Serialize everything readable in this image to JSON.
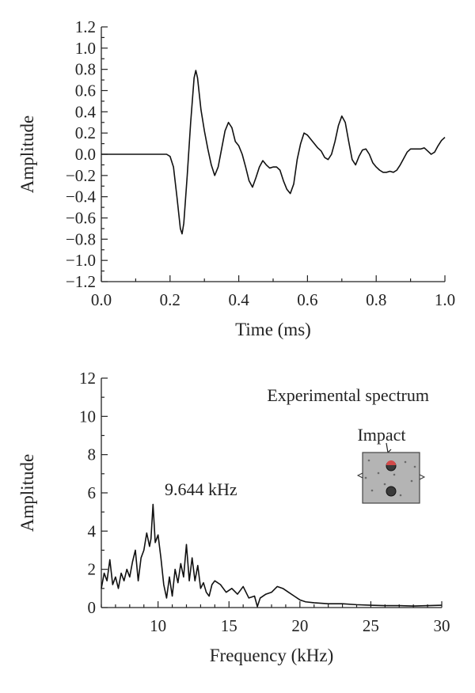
{
  "chart_data": [
    {
      "type": "line",
      "title": "",
      "xlabel": "Time (ms)",
      "ylabel": "Amplitude",
      "xlim": [
        0.0,
        1.0
      ],
      "ylim": [
        -1.2,
        1.2
      ],
      "xticks": [
        0.0,
        0.2,
        0.4,
        0.6,
        0.8,
        1.0
      ],
      "xtick_labels": [
        "0.0",
        "0.2",
        "0.4",
        "0.6",
        "0.8",
        "1.0"
      ],
      "yticks": [
        -1.2,
        -1.0,
        -0.8,
        -0.6,
        -0.4,
        -0.2,
        0.0,
        0.2,
        0.4,
        0.6,
        0.8,
        1.0,
        1.2
      ],
      "ytick_labels": [
        "−1.2",
        "−1.0",
        "−0.8",
        "−0.6",
        "−0.4",
        "−0.2",
        "0.0",
        "0.2",
        "0.4",
        "0.6",
        "0.8",
        "1.0",
        "1.2"
      ],
      "grid": false,
      "series": [
        {
          "x": [
            0.0,
            0.1,
            0.18,
            0.19,
            0.2,
            0.21,
            0.22,
            0.23,
            0.235,
            0.24,
            0.25,
            0.26,
            0.27,
            0.275,
            0.28,
            0.29,
            0.3,
            0.31,
            0.32,
            0.33,
            0.34,
            0.35,
            0.36,
            0.37,
            0.38,
            0.39,
            0.4,
            0.41,
            0.42,
            0.43,
            0.44,
            0.45,
            0.46,
            0.47,
            0.48,
            0.49,
            0.5,
            0.51,
            0.52,
            0.53,
            0.54,
            0.55,
            0.56,
            0.57,
            0.58,
            0.59,
            0.6,
            0.61,
            0.62,
            0.63,
            0.64,
            0.65,
            0.66,
            0.67,
            0.68,
            0.69,
            0.7,
            0.71,
            0.72,
            0.73,
            0.74,
            0.75,
            0.76,
            0.77,
            0.78,
            0.79,
            0.8,
            0.81,
            0.82,
            0.83,
            0.84,
            0.85,
            0.86,
            0.87,
            0.88,
            0.89,
            0.9,
            0.91,
            0.92,
            0.93,
            0.94,
            0.95,
            0.96,
            0.97,
            0.98,
            0.99,
            1.0
          ],
          "values": [
            0.0,
            0.0,
            0.0,
            0.0,
            -0.02,
            -0.12,
            -0.4,
            -0.7,
            -0.75,
            -0.65,
            -0.2,
            0.3,
            0.72,
            0.79,
            0.72,
            0.42,
            0.22,
            0.05,
            -0.1,
            -0.2,
            -0.12,
            0.05,
            0.22,
            0.3,
            0.25,
            0.12,
            0.08,
            0.0,
            -0.12,
            -0.25,
            -0.31,
            -0.22,
            -0.12,
            -0.06,
            -0.1,
            -0.13,
            -0.12,
            -0.12,
            -0.15,
            -0.25,
            -0.33,
            -0.37,
            -0.28,
            -0.05,
            0.1,
            0.2,
            0.18,
            0.14,
            0.1,
            0.06,
            0.03,
            -0.03,
            -0.05,
            0.0,
            0.12,
            0.27,
            0.36,
            0.3,
            0.12,
            -0.05,
            -0.1,
            -0.02,
            0.04,
            0.05,
            0.0,
            -0.08,
            -0.12,
            -0.15,
            -0.17,
            -0.17,
            -0.16,
            -0.17,
            -0.15,
            -0.1,
            -0.04,
            0.02,
            0.05,
            0.05,
            0.05,
            0.05,
            0.06,
            0.03,
            0.0,
            0.02,
            0.08,
            0.13,
            0.16
          ]
        }
      ]
    },
    {
      "type": "line",
      "title": "",
      "xlabel": "Frequency (kHz)",
      "ylabel": "Amplitude",
      "xlim": [
        6,
        30
      ],
      "ylim": [
        0,
        12
      ],
      "xticks": [
        10,
        15,
        20,
        25,
        30
      ],
      "xtick_labels": [
        "10",
        "15",
        "20",
        "25",
        "30"
      ],
      "yticks": [
        0,
        2,
        4,
        6,
        8,
        10,
        12
      ],
      "ytick_labels": [
        "0",
        "2",
        "4",
        "6",
        "8",
        "10",
        "12"
      ],
      "grid": false,
      "legend_text": "Experimental spectrum",
      "annotations": {
        "peak_label": "9.644 kHz",
        "inset_label": "Impact"
      },
      "series": [
        {
          "x": [
            6.0,
            6.2,
            6.4,
            6.6,
            6.8,
            7.0,
            7.2,
            7.4,
            7.6,
            7.8,
            8.0,
            8.2,
            8.4,
            8.6,
            8.8,
            9.0,
            9.2,
            9.4,
            9.5,
            9.644,
            9.8,
            10.0,
            10.2,
            10.4,
            10.6,
            10.8,
            11.0,
            11.2,
            11.4,
            11.6,
            11.8,
            12.0,
            12.2,
            12.4,
            12.6,
            12.8,
            13.0,
            13.2,
            13.4,
            13.6,
            13.8,
            14.0,
            14.4,
            14.8,
            15.2,
            15.6,
            16.0,
            16.4,
            16.8,
            17.0,
            17.2,
            17.6,
            18.0,
            18.4,
            18.8,
            19.2,
            19.6,
            20.0,
            20.4,
            21.0,
            22.0,
            23.0,
            24.0,
            25.0,
            26.0,
            27.0,
            28.0,
            29.0,
            30.0
          ],
          "values": [
            1.0,
            1.8,
            1.4,
            2.5,
            1.2,
            1.6,
            1.0,
            1.8,
            1.4,
            2.0,
            1.6,
            2.4,
            3.0,
            1.4,
            2.6,
            3.0,
            3.9,
            3.2,
            3.6,
            5.4,
            3.4,
            3.8,
            2.6,
            1.2,
            0.5,
            1.6,
            0.6,
            2.0,
            1.3,
            2.3,
            1.6,
            3.3,
            1.4,
            2.6,
            1.4,
            2.2,
            1.0,
            1.3,
            0.8,
            0.6,
            1.2,
            1.4,
            1.2,
            0.8,
            1.0,
            0.7,
            1.1,
            0.5,
            0.6,
            0.05,
            0.5,
            0.7,
            0.8,
            1.1,
            1.0,
            0.8,
            0.6,
            0.4,
            0.3,
            0.25,
            0.2,
            0.2,
            0.15,
            0.12,
            0.1,
            0.1,
            0.08,
            0.1,
            0.12
          ]
        }
      ]
    }
  ]
}
